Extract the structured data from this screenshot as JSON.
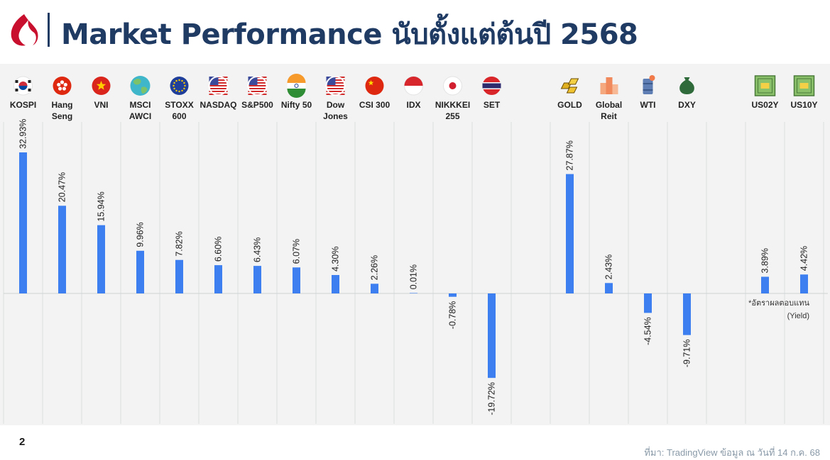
{
  "header": {
    "title": "Market Performance นับตั้งแต่ต้นปี 2568",
    "logo_icon": "brand-flame-logo-icon"
  },
  "colors": {
    "title": "#1f3a63",
    "bar": "#3d7ff0",
    "logo_red": "#c8102e",
    "panel_bg": "#f2f3f2"
  },
  "chart_data": {
    "type": "bar",
    "categories": [
      {
        "lines": [
          "KOSPI"
        ],
        "icon": "south-korea-flag-icon"
      },
      {
        "lines": [
          "Hang",
          "Seng"
        ],
        "icon": "hong-kong-flag-icon"
      },
      {
        "lines": [
          "VNI"
        ],
        "icon": "vietnam-flag-icon"
      },
      {
        "lines": [
          "MSCI",
          "AWCI"
        ],
        "icon": "globe-icon"
      },
      {
        "lines": [
          "STOXX",
          "600"
        ],
        "icon": "eu-flag-icon"
      },
      {
        "lines": [
          "NASDAQ"
        ],
        "icon": "us-flag-icon"
      },
      {
        "lines": [
          "S&P500"
        ],
        "icon": "us-flag-icon"
      },
      {
        "lines": [
          "Nifty 50"
        ],
        "icon": "india-flag-icon"
      },
      {
        "lines": [
          "Dow",
          "Jones"
        ],
        "icon": "us-flag-icon"
      },
      {
        "lines": [
          "CSI 300"
        ],
        "icon": "china-flag-icon"
      },
      {
        "lines": [
          "IDX"
        ],
        "icon": "indonesia-flag-icon"
      },
      {
        "lines": [
          "NIKKKEI",
          "255"
        ],
        "icon": "japan-flag-icon"
      },
      {
        "lines": [
          "SET"
        ],
        "icon": "thailand-flag-icon"
      },
      {
        "lines": [],
        "icon": ""
      },
      {
        "lines": [
          "GOLD"
        ],
        "icon": "gold-bars-icon"
      },
      {
        "lines": [
          "Global",
          "Reit"
        ],
        "icon": "buildings-icon"
      },
      {
        "lines": [
          "WTI"
        ],
        "icon": "oil-barrel-icon"
      },
      {
        "lines": [
          "DXY"
        ],
        "icon": "dollar-bag-icon"
      },
      {
        "lines": [],
        "icon": ""
      },
      {
        "lines": [
          "US02Y"
        ],
        "icon": "bond-certificate-icon"
      },
      {
        "lines": [
          "US10Y"
        ],
        "icon": "bond-certificate-icon"
      }
    ],
    "values": [
      32.93,
      20.47,
      15.94,
      9.96,
      7.82,
      6.6,
      6.43,
      6.07,
      4.3,
      2.26,
      0.01,
      -0.78,
      -19.72,
      null,
      27.87,
      2.43,
      -4.54,
      -9.71,
      null,
      3.89,
      4.42
    ],
    "value_labels": [
      "32.93%",
      "20.47%",
      "15.94%",
      "9.96%",
      "7.82%",
      "6.60%",
      "6.43%",
      "6.07%",
      "4.30%",
      "2.26%",
      "0.01%",
      "-0.78%",
      "-19.72%",
      "",
      "27.87%",
      "2.43%",
      "-4.54%",
      "-9.71%",
      "",
      "3.89%",
      "4.42%"
    ],
    "unit": "%",
    "ylim": [
      -30,
      35
    ],
    "grid": "vertical separators",
    "note_lines": [
      "*อัตราผลตอบแทน",
      "(Yield)"
    ]
  },
  "footer": {
    "page_number": "2",
    "source": "ที่มา: TradingView ข้อมูล ณ วันที่ 14 ก.ค. 68"
  }
}
